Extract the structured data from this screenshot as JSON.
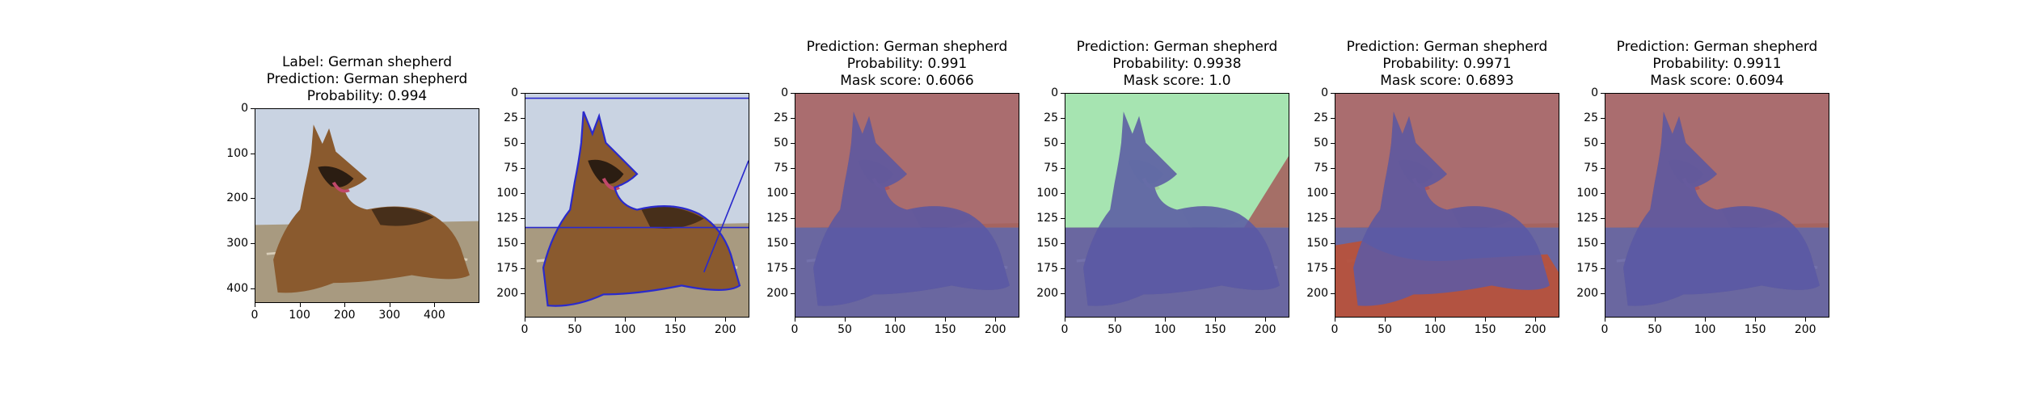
{
  "chart_data": [
    {
      "type": "image",
      "title_lines": [
        "Label: German shepherd",
        "Prediction: German shepherd",
        "Probability: 0.994"
      ],
      "xlim": [
        0,
        500
      ],
      "ylim": [
        433,
        0
      ],
      "xticks": [
        0,
        100,
        200,
        300,
        400
      ],
      "yticks": [
        0,
        100,
        200,
        300,
        400
      ],
      "overlay": "none"
    },
    {
      "type": "image",
      "title_lines": [],
      "xlim": [
        0,
        224
      ],
      "ylim": [
        224,
        0
      ],
      "xticks": [
        0,
        50,
        100,
        150,
        200
      ],
      "yticks": [
        0,
        25,
        50,
        75,
        100,
        125,
        150,
        175,
        200
      ],
      "overlay": "contour"
    },
    {
      "type": "image",
      "title_lines": [
        "Prediction: German shepherd",
        "Probability: 0.991",
        "Mask score: 0.6066"
      ],
      "xlim": [
        0,
        224
      ],
      "ylim": [
        224,
        0
      ],
      "xticks": [
        0,
        50,
        100,
        150,
        200
      ],
      "yticks": [
        0,
        25,
        50,
        75,
        100,
        125,
        150,
        175,
        200
      ],
      "overlay": "mask-red"
    },
    {
      "type": "image",
      "title_lines": [
        "Prediction: German shepherd",
        "Probability: 0.9938",
        "Mask score: 1.0"
      ],
      "xlim": [
        0,
        224
      ],
      "ylim": [
        224,
        0
      ],
      "xticks": [
        0,
        50,
        100,
        150,
        200
      ],
      "yticks": [
        0,
        25,
        50,
        75,
        100,
        125,
        150,
        175,
        200
      ],
      "overlay": "mask-green"
    },
    {
      "type": "image",
      "title_lines": [
        "Prediction: German shepherd",
        "Probability: 0.9971",
        "Mask score: 0.6893"
      ],
      "xlim": [
        0,
        224
      ],
      "ylim": [
        224,
        0
      ],
      "xticks": [
        0,
        50,
        100,
        150,
        200
      ],
      "yticks": [
        0,
        25,
        50,
        75,
        100,
        125,
        150,
        175,
        200
      ],
      "overlay": "mask-red-cushion"
    },
    {
      "type": "image",
      "title_lines": [
        "Prediction: German shepherd",
        "Probability: 0.9911",
        "Mask score: 0.6094"
      ],
      "xlim": [
        0,
        224
      ],
      "ylim": [
        224,
        0
      ],
      "xticks": [
        0,
        50,
        100,
        150,
        200
      ],
      "yticks": [
        0,
        25,
        50,
        75,
        100,
        125,
        150,
        175,
        200
      ],
      "overlay": "mask-red"
    }
  ],
  "colors": {
    "wall": "#c9d3e2",
    "cushion": "#a89a80",
    "dog": "#8a5a2e",
    "dog_dark": "#2b1d12",
    "mask_red": "#a55a5a",
    "mask_green": "#a0e6a8",
    "mask_blue": "#5a5aa8",
    "mask_orange": "#c05030",
    "contour": "#2a2acc"
  }
}
